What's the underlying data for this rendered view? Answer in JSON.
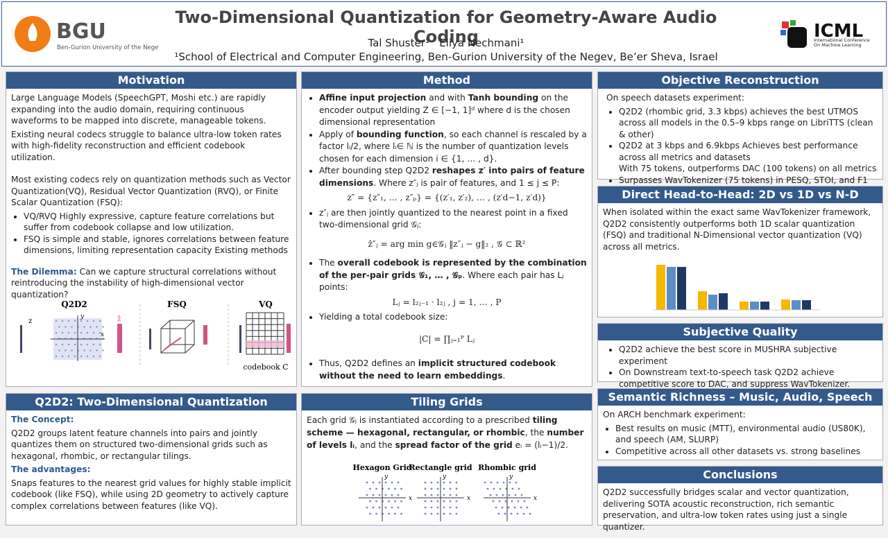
{
  "header": {
    "logo_left": {
      "name": "BGU",
      "subtitle": "Ben-Gurion University of the Negev"
    },
    "title": "Two-Dimensional Quantization for Geometry-Aware Audio Coding",
    "authors": "Tal Shuster¹   Eliya Nechmani¹",
    "affiliation": "¹School of Electrical and Computer Engineering, Ben-Gurion University of the Negev, Be’er Sheva, Israel",
    "logo_right": {
      "name": "ICML",
      "subtitle": "International Conference On Machine Learning"
    }
  },
  "motivation": {
    "title": "Motivation",
    "paragraphs": [
      "Large Language Models (SpeechGPT, Moshi etc.) are rapidly expanding into the audio domain, requiring continuous waveforms to be mapped into discrete, manageable tokens.",
      "Existing neural codecs struggle to balance ultra-low token rates with high-fidelity reconstruction and efficient codebook utilization.",
      "Most existing codecs rely on quantization methods such as Vector Quantization(VQ), Residual Vector Quantization (RVQ), or Finite Scalar Quantization (FSQ):"
    ],
    "bullets": [
      "VQ/RVQ Highly expressive, capture feature correlations but suffer from codebook collapse and low utilization.",
      "FSQ is simple and stable, ignores correlations between feature dimensions, limiting representation capacity Existing methods"
    ],
    "dilemma_label": "The Dilemma:",
    "dilemma": " Can we capture structural correlations without reintroducing the instability of high-dimensional vector quantization?",
    "figure": {
      "panels": [
        "Q2D2",
        "FSQ",
        "VQ"
      ],
      "codebook": "codebook C",
      "axes": [
        "y",
        "x"
      ],
      "input": "z",
      "output": "ẑ"
    }
  },
  "method": {
    "title": "Method",
    "bullets": [
      [
        "Affine input projection",
        " and with ",
        "Tanh bounding",
        " on the encoder output yielding Z ∈ [−1, 1]ᵈ where d is the chosen dimensional representation"
      ],
      [
        "Apply of ",
        "bounding function",
        ", so each channel is rescaled by a factor lᵢ/2, where lᵢ∈ ℕ is the number of quantization levels chosen for each dimension i ∈ {1, … , d}."
      ],
      [
        "After bounding step Q2D2 ",
        "reshapes z′ into pairs of feature dimensions",
        ". Where z″ⱼ is pair of features, and 1 ≤ j ≤ P:"
      ],
      [
        "z″ⱼ are then jointly quantized to the nearest point in a fixed two-dimensional grid 𝒢ⱼ:"
      ],
      [
        "The ",
        "overall codebook is represented by the combination of the per-pair grids 𝒢₁, … , 𝒢ₚ",
        ". Where each pair has Lⱼ points:"
      ],
      [
        "Yielding a total codebook size:"
      ],
      [
        "Thus, Q2D2 defines an ",
        "implicit structured codebook without the need to learn embeddings",
        "."
      ]
    ],
    "equations": [
      "z″ = {z″₁, … , z″ₚ} = {(z′₁, z′₂), … , (z′d−1, z′d)}",
      "ẑ″ⱼ = arg min g∈𝒢ⱼ ‖z″ⱼ − g‖₂ ,      𝒢 ⊂ ℝ²",
      "Lⱼ = l₂ⱼ₋₁ · l₂ⱼ ,       j = 1, … , P",
      "|C| = ∏ⱼ₌₁ᴾ Lⱼ"
    ]
  },
  "q2d2": {
    "title": "Q2D2: Two-Dimensional Quantization",
    "concept_label": "The Concept:",
    "concept": "Q2D2 groups latent feature channels into pairs and jointly quantizes them on structured two-dimensional grids such as hexagonal, rhombic, or rectangular tilings.",
    "advantages_label": "The advantages:",
    "advantages": "Snaps features to the nearest grid values for highly stable implicit codebook (like FSQ), while using 2D geometry to actively capture complex correlations between features (like VQ)."
  },
  "tiling": {
    "title": "Tiling Grids",
    "text": [
      "Each grid 𝒢ⱼ is instantiated according to a prescribed ",
      "tiling scheme — hexagonal, rectangular, or rhombic",
      ", the ",
      "number of levels lᵢ",
      ", and the ",
      "spread factor of the grid",
      " eᵢ = (lᵢ−1)/2."
    ],
    "grids": [
      "Hexagon Grid",
      "Rectangle grid",
      "Rhombic grid"
    ]
  },
  "objective": {
    "title": "Objective Reconstruction",
    "intro": "On speech datasets experiment:",
    "bullets": [
      "Q2D2 (rhombic grid, 3.3 kbps) achieves the best UTMOS across all models in the 0.5–9 kbps range on LibriTTS (clean & other)",
      "Q2D2 at 3 kbps and 6.9kbps Achieves best performance across all metrics and datasets",
      "Surpasses WavTokenizer (75 tokens) in PESQ, STOI, and F1"
    ],
    "sub": "With 75 tokens, outperforms DAC (100 tokens) on all metrics"
  },
  "head_to_head": {
    "title": "Direct Head-to-Head: 2D vs 1D vs N-D",
    "text": "When isolated within the exact same WavTokenizer framework, Q2D2 consistently outperforms both 1D scalar quantization (FSQ) and traditional N-Dimensional vector quantization (VQ) across all metrics.",
    "chart": {
      "type": "bar",
      "series": [
        {
          "color": "#f5b800",
          "values": [
            65,
            27,
            12,
            15
          ]
        },
        {
          "color": "#5b8ec7",
          "values": [
            62,
            22,
            12,
            14
          ]
        },
        {
          "color": "#1f3864",
          "values": [
            62,
            24,
            12,
            14
          ]
        }
      ]
    }
  },
  "subjective": {
    "title": "Subjective Quality",
    "bullets": [
      "Q2D2 achieve the best score in MUSHRA subjective experiment",
      "On Downstream text-to-speech task Q2D2 achieve competitive score to DAC, and suppress WavTokenizer."
    ]
  },
  "semantic": {
    "title": "Semantic Richness – Music, Audio, Speech",
    "intro": "On ARCH benchmark experiment:",
    "bullets": [
      "Best results on music (MTT), environmental audio (US80K), and speech (AM, SLURP)",
      "Competitive across all other datasets vs. strong baselines"
    ]
  },
  "conclusions": {
    "title": "Conclusions",
    "text": "Q2D2 successfully bridges scalar and vector quantization, delivering SOTA acoustic reconstruction, rich semantic preservation, and ultra-low token rates using just a single quantizer."
  }
}
